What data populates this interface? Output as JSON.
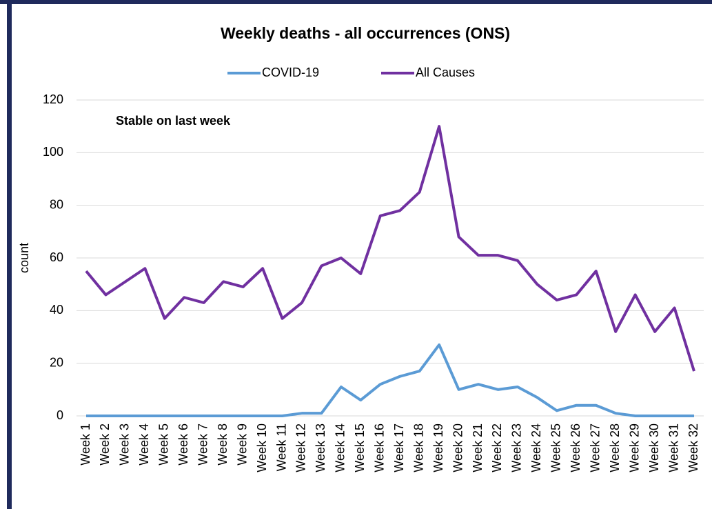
{
  "chart_data": {
    "type": "line",
    "title": "Weekly deaths - all occurrences (ONS)",
    "annotation": "Stable on last week",
    "y_label": "count",
    "categories": [
      "Week 1",
      "Week 2",
      "Week 3",
      "Week 4",
      "Week 5",
      "Week 6",
      "Week 7",
      "Week 8",
      "Week 9",
      "Week 10",
      "Week 11",
      "Week 12",
      "Week 13",
      "Week 14",
      "Week 15",
      "Week 16",
      "Week 17",
      "Week 18",
      "Week 19",
      "Week 20",
      "Week 21",
      "Week 22",
      "Week 23",
      "Week 24",
      "Week 25",
      "Week 26",
      "Week 27",
      "Week 28",
      "Week 29",
      "Week 30",
      "Week 31",
      "Week 32"
    ],
    "series": [
      {
        "name": "COVID-19",
        "color": "#5b9bd5",
        "values": [
          0,
          0,
          0,
          0,
          0,
          0,
          0,
          0,
          0,
          0,
          0,
          1,
          1,
          11,
          6,
          12,
          15,
          17,
          27,
          10,
          12,
          10,
          11,
          7,
          2,
          4,
          4,
          1,
          0,
          0,
          0,
          0
        ]
      },
      {
        "name": "All Causes",
        "color": "#7030a0",
        "values": [
          55,
          46,
          51,
          56,
          37,
          45,
          43,
          51,
          49,
          56,
          37,
          43,
          57,
          60,
          54,
          76,
          78,
          85,
          110,
          68,
          61,
          61,
          59,
          50,
          44,
          46,
          55,
          32,
          46,
          32,
          41,
          17
        ]
      }
    ],
    "ylim": [
      0,
      120
    ],
    "yticks": [
      0,
      20,
      40,
      60,
      80,
      100,
      120
    ],
    "grid": true,
    "legend": "top"
  }
}
